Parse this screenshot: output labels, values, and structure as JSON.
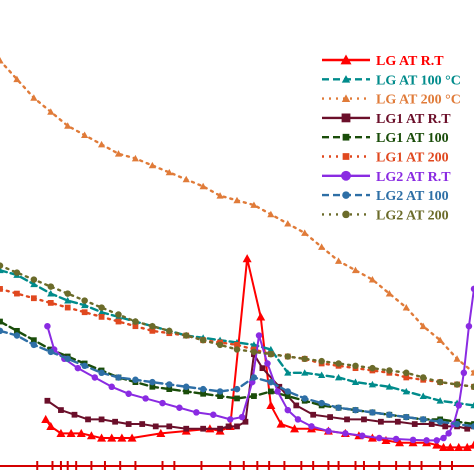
{
  "chart_data": {
    "type": "line",
    "xlim": [
      0,
      28
    ],
    "ylim": [
      0,
      1
    ],
    "grid": false,
    "legend_position": "top-right",
    "series": [
      {
        "name": "LG  AT  R.T",
        "color": "#ff0000",
        "style": "solid",
        "marker": "triangle",
        "x": [
          2.7,
          3.0,
          3.6,
          4.2,
          4.8,
          5.4,
          6.0,
          6.6,
          7.2,
          7.8,
          9.5,
          11.0,
          12.4,
          13.0,
          13.6,
          14.6,
          15.4,
          16.0,
          16.6,
          17.4,
          18.4,
          19.4,
          20.4,
          21.2,
          22.0,
          22.8,
          23.6,
          24.4,
          25.2,
          25.8,
          26.2,
          26.6,
          27.1,
          27.6,
          28.0
        ],
        "y": [
          0.1,
          0.085,
          0.07,
          0.07,
          0.07,
          0.065,
          0.06,
          0.06,
          0.06,
          0.06,
          0.07,
          0.075,
          0.08,
          0.075,
          0.085,
          0.445,
          0.32,
          0.13,
          0.09,
          0.08,
          0.08,
          0.075,
          0.07,
          0.065,
          0.06,
          0.055,
          0.05,
          0.05,
          0.05,
          0.045,
          0.04,
          0.04,
          0.04,
          0.04,
          0.045
        ]
      },
      {
        "name": "LG AT 100 °C",
        "color": "#008b8b",
        "style": "dashed",
        "marker": "triangle",
        "x": [
          0,
          1,
          2,
          3,
          4,
          5,
          6,
          7,
          8,
          9,
          10,
          11,
          12,
          13,
          14,
          15,
          16,
          17,
          18,
          19,
          20,
          21,
          22,
          23,
          24,
          25,
          26,
          27,
          28
        ],
        "y": [
          0.42,
          0.41,
          0.39,
          0.37,
          0.355,
          0.345,
          0.33,
          0.32,
          0.31,
          0.3,
          0.29,
          0.28,
          0.275,
          0.27,
          0.265,
          0.26,
          0.25,
          0.2,
          0.2,
          0.195,
          0.19,
          0.18,
          0.175,
          0.17,
          0.16,
          0.15,
          0.14,
          0.135,
          0.13
        ]
      },
      {
        "name": "LG AT 200 °C",
        "color": "#e07b39",
        "style": "dotted",
        "marker": "triangle",
        "x": [
          0,
          1,
          2,
          3,
          4,
          5,
          6,
          7,
          8,
          9,
          10,
          11,
          12,
          13,
          14,
          15,
          16,
          17,
          18,
          19,
          20,
          21,
          22,
          23,
          24,
          25,
          26,
          27,
          28
        ],
        "y": [
          0.87,
          0.83,
          0.79,
          0.76,
          0.73,
          0.71,
          0.69,
          0.67,
          0.66,
          0.645,
          0.63,
          0.615,
          0.6,
          0.58,
          0.57,
          0.56,
          0.54,
          0.52,
          0.5,
          0.47,
          0.44,
          0.42,
          0.4,
          0.37,
          0.34,
          0.3,
          0.27,
          0.23,
          0.2
        ]
      },
      {
        "name": "LG1 AT  R.T",
        "color": "#6b0f2a",
        "style": "solid",
        "marker": "square",
        "x": [
          2.8,
          3.6,
          4.4,
          5.2,
          6.0,
          6.8,
          7.6,
          8.4,
          9.2,
          10.0,
          11.0,
          12.0,
          13.0,
          13.5,
          14.0,
          14.5,
          15.0,
          15.5,
          16.5,
          17.5,
          18.5,
          19.5,
          20.5,
          21.5,
          22.5,
          23.5,
          24.5,
          25.5,
          26.3,
          27.0,
          27.6,
          28.0
        ],
        "y": [
          0.14,
          0.12,
          0.11,
          0.1,
          0.1,
          0.095,
          0.09,
          0.09,
          0.085,
          0.085,
          0.08,
          0.08,
          0.08,
          0.085,
          0.085,
          0.095,
          0.24,
          0.21,
          0.17,
          0.13,
          0.11,
          0.105,
          0.1,
          0.1,
          0.095,
          0.095,
          0.09,
          0.09,
          0.085,
          0.085,
          0.08,
          0.085
        ]
      },
      {
        "name": "LG1 AT 100",
        "color": "#1a4d0a",
        "style": "dashed",
        "marker": "square",
        "x": [
          0,
          1,
          2,
          3,
          4,
          5,
          6,
          7,
          8,
          9,
          10,
          11,
          12,
          13,
          14,
          15,
          16,
          17,
          18,
          19,
          20,
          21,
          22,
          23,
          24,
          25,
          26,
          27,
          28
        ],
        "y": [
          0.31,
          0.29,
          0.27,
          0.25,
          0.235,
          0.22,
          0.205,
          0.19,
          0.18,
          0.17,
          0.165,
          0.16,
          0.155,
          0.15,
          0.145,
          0.15,
          0.16,
          0.15,
          0.14,
          0.13,
          0.125,
          0.12,
          0.115,
          0.11,
          0.105,
          0.1,
          0.1,
          0.095,
          0.09
        ]
      },
      {
        "name": "LG1 AT 200",
        "color": "#e0481f",
        "style": "dotted",
        "marker": "square",
        "x": [
          0,
          1,
          2,
          3,
          4,
          5,
          6,
          7,
          8,
          9,
          10,
          11,
          12,
          13,
          14,
          15,
          16,
          17,
          18,
          19,
          20,
          21,
          22,
          23,
          24,
          25,
          26,
          27,
          28
        ],
        "y": [
          0.38,
          0.37,
          0.36,
          0.35,
          0.34,
          0.33,
          0.32,
          0.31,
          0.3,
          0.29,
          0.285,
          0.28,
          0.27,
          0.265,
          0.26,
          0.25,
          0.24,
          0.235,
          0.23,
          0.22,
          0.215,
          0.21,
          0.205,
          0.2,
          0.19,
          0.185,
          0.18,
          0.175,
          0.17
        ]
      },
      {
        "name": "LG2 AT  R.T",
        "color": "#8a2be2",
        "style": "solid",
        "marker": "circle",
        "x": [
          2.8,
          3.2,
          3.8,
          4.6,
          5.6,
          6.6,
          7.6,
          8.6,
          9.6,
          10.6,
          11.6,
          12.6,
          13.6,
          14.3,
          14.9,
          15.3,
          15.8,
          16.4,
          17.0,
          17.6,
          18.4,
          19.4,
          20.4,
          21.4,
          22.4,
          23.4,
          24.4,
          25.2,
          25.8,
          26.2,
          26.5,
          26.8,
          27.1,
          27.4,
          27.7,
          28.0
        ],
        "y": [
          0.3,
          0.25,
          0.23,
          0.21,
          0.19,
          0.17,
          0.155,
          0.145,
          0.135,
          0.125,
          0.115,
          0.11,
          0.1,
          0.105,
          0.18,
          0.28,
          0.22,
          0.16,
          0.12,
          0.1,
          0.085,
          0.075,
          0.07,
          0.065,
          0.06,
          0.058,
          0.056,
          0.055,
          0.055,
          0.06,
          0.07,
          0.09,
          0.13,
          0.2,
          0.3,
          0.38
        ]
      },
      {
        "name": "LG2 AT 100",
        "color": "#2e6fa6",
        "style": "dashed",
        "marker": "circle",
        "x": [
          0,
          1,
          2,
          3,
          4,
          5,
          6,
          7,
          8,
          9,
          10,
          11,
          12,
          13,
          14,
          15,
          16,
          17,
          18,
          19,
          20,
          21,
          22,
          23,
          24,
          25,
          26,
          27,
          28
        ],
        "y": [
          0.29,
          0.28,
          0.26,
          0.245,
          0.23,
          0.215,
          0.2,
          0.19,
          0.185,
          0.18,
          0.175,
          0.17,
          0.165,
          0.16,
          0.165,
          0.19,
          0.18,
          0.16,
          0.145,
          0.135,
          0.125,
          0.12,
          0.115,
          0.11,
          0.105,
          0.1,
          0.095,
          0.09,
          0.085
        ]
      },
      {
        "name": "LG2 AT 200",
        "color": "#6b6b2a",
        "style": "dotted",
        "marker": "circle",
        "x": [
          0,
          1,
          2,
          3,
          4,
          5,
          6,
          7,
          8,
          9,
          10,
          11,
          12,
          13,
          14,
          15,
          16,
          17,
          18,
          19,
          20,
          21,
          22,
          23,
          24,
          25,
          26,
          27,
          28
        ],
        "y": [
          0.43,
          0.415,
          0.4,
          0.385,
          0.37,
          0.355,
          0.34,
          0.325,
          0.31,
          0.3,
          0.29,
          0.28,
          0.27,
          0.26,
          0.25,
          0.245,
          0.24,
          0.235,
          0.23,
          0.225,
          0.22,
          0.215,
          0.21,
          0.205,
          0.2,
          0.19,
          0.18,
          0.175,
          0.17
        ]
      }
    ]
  }
}
